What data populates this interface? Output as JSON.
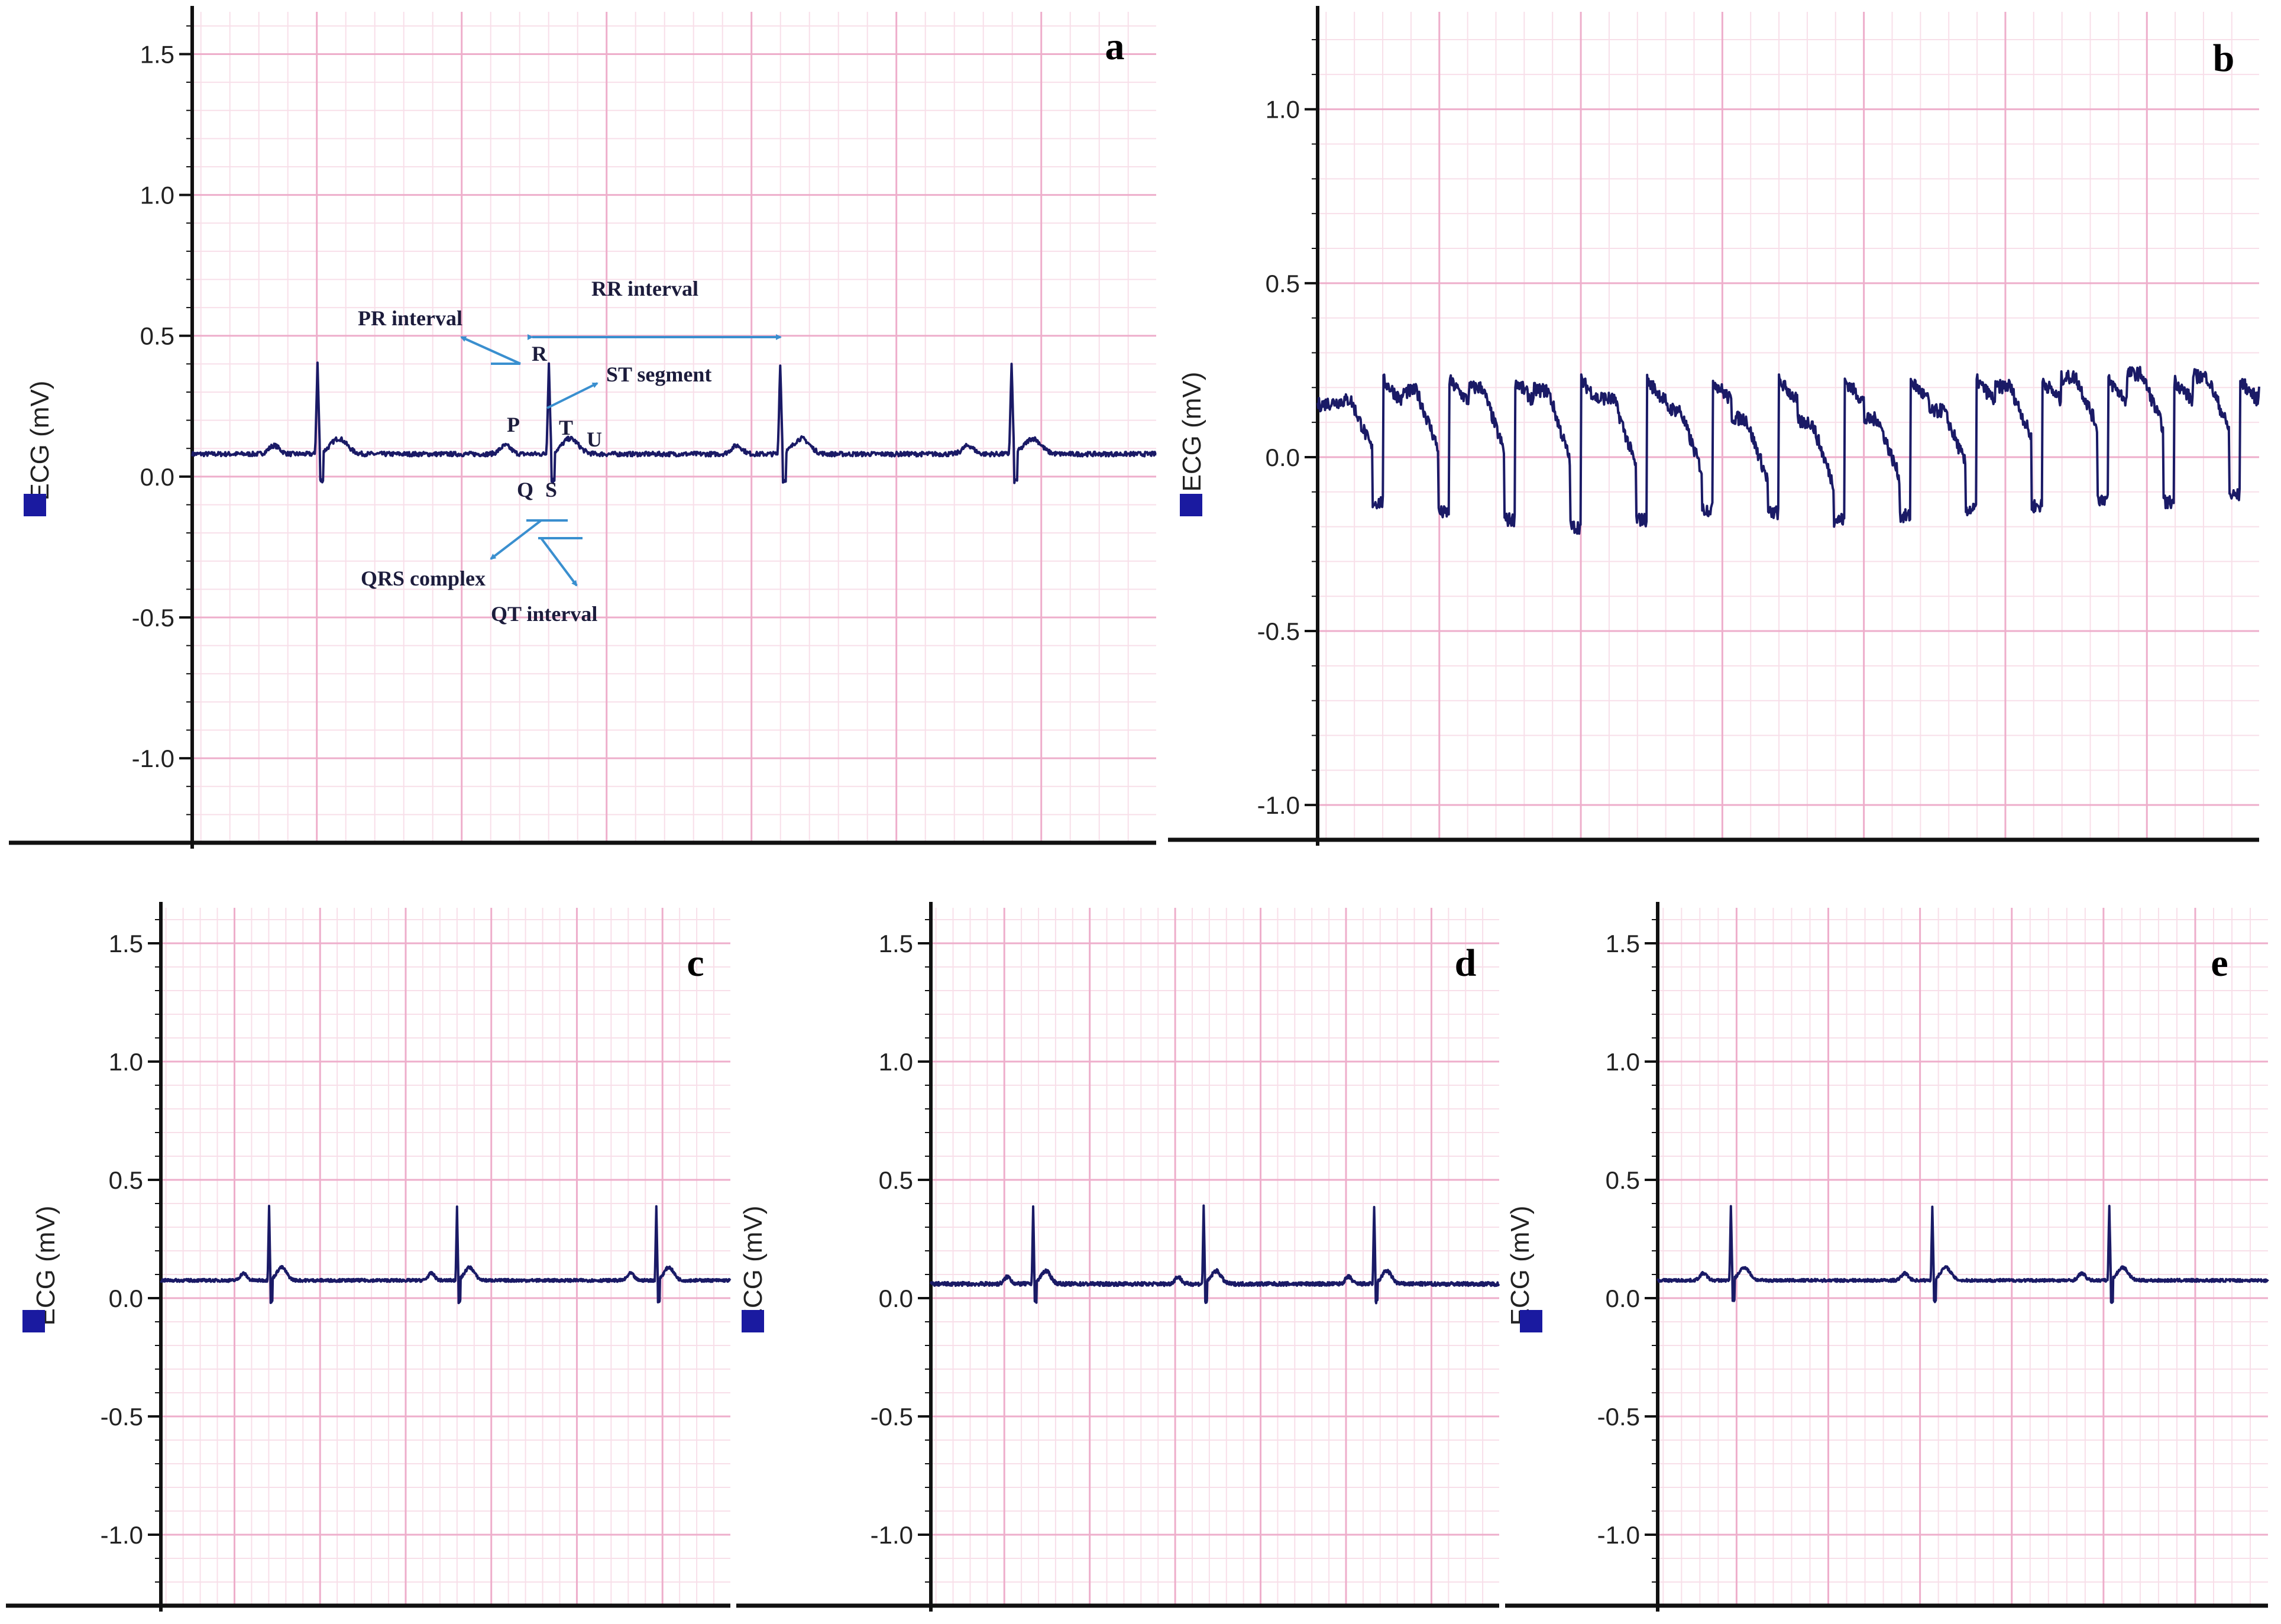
{
  "chart_data": [
    {
      "panel": "a",
      "type": "line",
      "ylabel": "ECG (mV)",
      "yticks": [
        "1.5",
        "1.0",
        "0.5",
        "0.0",
        "-0.5",
        "-1.0"
      ],
      "ylim": [
        -1.3,
        1.65
      ],
      "grid": true,
      "series": [
        {
          "baseline": 0.08,
          "beats": [
            0.13,
            0.37,
            0.61,
            0.85
          ],
          "peak": 0.4,
          "trough": -0.02,
          "noise": 0.008
        }
      ],
      "annotations": [
        "PR interval",
        "RR interval",
        "R",
        "ST segment",
        "P",
        "T",
        "U",
        "Q",
        "S",
        "QRS complex",
        "QT interval"
      ]
    },
    {
      "panel": "b",
      "type": "line",
      "ylabel": "ECG (mV)",
      "yticks": [
        "1.0",
        "0.5",
        "0.0",
        "-0.5",
        "-1.0"
      ],
      "ylim": [
        -1.1,
        1.28
      ],
      "grid": true,
      "series": [
        {
          "baseline": 0.15,
          "beats": [
            0.07,
            0.14,
            0.21,
            0.28,
            0.35,
            0.42,
            0.49,
            0.56,
            0.63,
            0.7,
            0.77,
            0.84,
            0.91,
            0.98
          ],
          "troughs": [
            -0.13,
            -0.16,
            -0.18,
            -0.2,
            -0.18,
            -0.15,
            -0.16,
            -0.18,
            -0.17,
            -0.15,
            -0.14,
            -0.12,
            -0.13,
            -0.11
          ],
          "noise": 0.02
        }
      ]
    },
    {
      "panel": "c",
      "type": "line",
      "ylabel": "ECG (mV)",
      "yticks": [
        "1.5",
        "1.0",
        "0.5",
        "0.0",
        "-0.5",
        "-1.0"
      ],
      "ylim": [
        -1.3,
        1.65
      ],
      "grid": true,
      "series": [
        {
          "baseline": 0.075,
          "beats": [
            0.19,
            0.52,
            0.87
          ],
          "peak": 0.39,
          "trough": -0.02,
          "noise": 0.006
        }
      ]
    },
    {
      "panel": "d",
      "type": "line",
      "ylabel": "ECG (mV)",
      "yticks": [
        "1.5",
        "1.0",
        "0.5",
        "0.0",
        "-0.5",
        "-1.0"
      ],
      "ylim": [
        -1.3,
        1.65
      ],
      "grid": true,
      "series": [
        {
          "baseline": 0.06,
          "beats": [
            0.18,
            0.48,
            0.78
          ],
          "peak": 0.39,
          "trough": -0.02,
          "noise": 0.008
        }
      ]
    },
    {
      "panel": "e",
      "type": "line",
      "ylabel": "ECG (mV)",
      "yticks": [
        "1.5",
        "1.0",
        "0.5",
        "0.0",
        "-0.5",
        "-1.0"
      ],
      "ylim": [
        -1.3,
        1.65
      ],
      "grid": true,
      "series": [
        {
          "baseline": 0.075,
          "beats": [
            0.12,
            0.45,
            0.74
          ],
          "peak": 0.39,
          "trough": -0.02,
          "noise": 0.006
        }
      ]
    }
  ],
  "colors": {
    "trace": "#1a1a66",
    "grid_major": "#eeaecb",
    "grid_minor": "#f8dfe9",
    "axis": "#111111",
    "annotation": "#3a8fcf",
    "legend_swatch": "#1a1aa0"
  }
}
